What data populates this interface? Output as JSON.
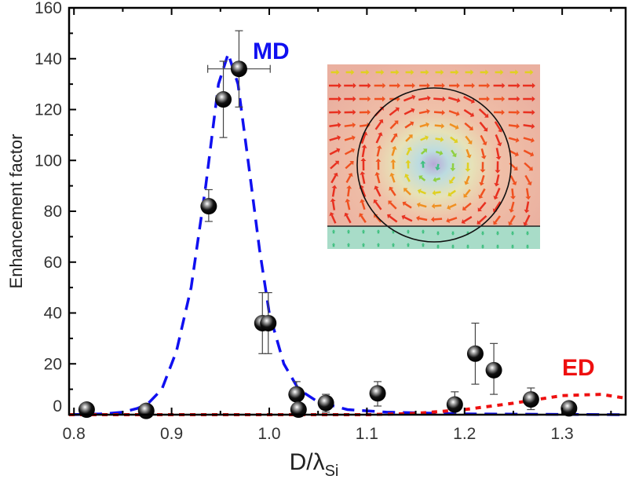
{
  "chart_data": {
    "type": "scatter",
    "xlabel": "D/λ",
    "xlabel_sub": "Si",
    "ylabel": "Enhancement factor",
    "xlim": [
      0.795,
      1.365
    ],
    "ylim": [
      0,
      160
    ],
    "xticks": [
      "0.8",
      "0.9",
      "1.0",
      "1.1",
      "1.2",
      "1.3"
    ],
    "xtick_values": [
      0.8,
      0.9,
      1.0,
      1.1,
      1.2,
      1.3
    ],
    "yticks": [
      "0",
      "20",
      "40",
      "60",
      "80",
      "100",
      "120",
      "140",
      "160"
    ],
    "ytick_values": [
      0,
      20,
      40,
      60,
      80,
      100,
      120,
      140,
      160
    ],
    "grid": false,
    "points": [
      {
        "x": 0.813,
        "y": 2
      },
      {
        "x": 0.874,
        "y": 1.5
      },
      {
        "x": 0.938,
        "y": 82,
        "ylo": 76,
        "yhi": 88.5
      },
      {
        "x": 0.953,
        "y": 124,
        "ylo": 109,
        "yhi": 139
      },
      {
        "x": 0.969,
        "y": 136,
        "ylo": 121,
        "yhi": 151,
        "xlo": 0.937,
        "xhi": 1.001
      },
      {
        "x": 0.993,
        "y": 36,
        "ylo": 24,
        "yhi": 48
      },
      {
        "x": 0.999,
        "y": 36,
        "ylo": 24,
        "yhi": 48
      },
      {
        "x": 1.028,
        "y": 8,
        "ylo": 4,
        "yhi": 13
      },
      {
        "x": 1.03,
        "y": 2
      },
      {
        "x": 1.058,
        "y": 4.6,
        "ylo": 1,
        "yhi": 8
      },
      {
        "x": 1.111,
        "y": 8.4,
        "ylo": 3.4,
        "yhi": 13
      },
      {
        "x": 1.19,
        "y": 4,
        "ylo": 0,
        "yhi": 9
      },
      {
        "x": 1.211,
        "y": 24,
        "ylo": 12,
        "yhi": 36
      },
      {
        "x": 1.23,
        "y": 17.5,
        "ylo": 8,
        "yhi": 28
      },
      {
        "x": 1.268,
        "y": 6,
        "ylo": 2,
        "yhi": 10.5
      },
      {
        "x": 1.307,
        "y": 2.5
      }
    ],
    "series": [
      {
        "name": "MD",
        "color": "#1010f0",
        "style": "dashed",
        "x": [
          0.795,
          0.83,
          0.85,
          0.865,
          0.875,
          0.89,
          0.905,
          0.92,
          0.935,
          0.948,
          0.958,
          0.968,
          0.98,
          0.99,
          1.0,
          1.015,
          1.03,
          1.05,
          1.08,
          1.12,
          1.2,
          1.365
        ],
        "y": [
          0,
          0.3,
          1,
          2.5,
          4,
          10,
          25,
          50,
          90,
          130,
          142,
          130,
          95,
          65,
          40,
          20,
          10,
          5,
          2,
          1,
          0.3,
          0
        ]
      },
      {
        "name": "ED",
        "color": "#ee1010",
        "style": "dotted",
        "x": [
          0.795,
          1.1,
          1.15,
          1.2,
          1.25,
          1.3,
          1.34,
          1.365
        ],
        "y": [
          0,
          0,
          0.5,
          2,
          4.5,
          7.5,
          8,
          6.5
        ]
      }
    ],
    "annotations": [
      "MD",
      "ED"
    ],
    "inset": "vector-field-image"
  }
}
